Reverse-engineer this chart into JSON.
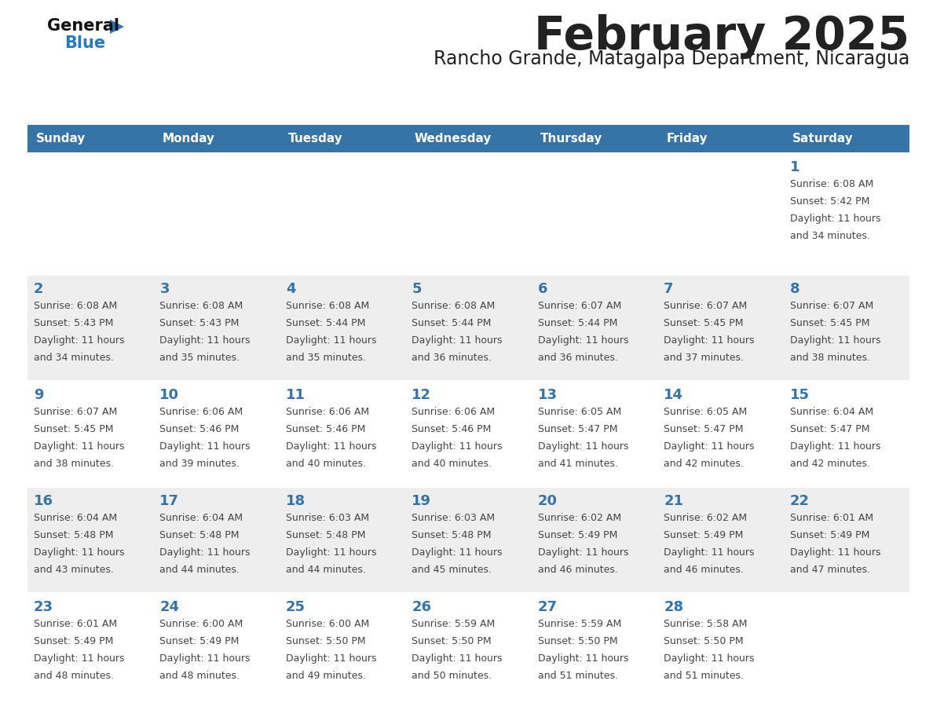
{
  "title": "February 2025",
  "subtitle": "Rancho Grande, Matagalpa Department, Nicaragua",
  "header_bg": "#3674A8",
  "header_text_color": "#FFFFFF",
  "day_names": [
    "Sunday",
    "Monday",
    "Tuesday",
    "Wednesday",
    "Thursday",
    "Friday",
    "Saturday"
  ],
  "row_bg": [
    "#FFFFFF",
    "#EEEEEE",
    "#FFFFFF",
    "#EEEEEE",
    "#FFFFFF"
  ],
  "separator_color": "#3674A8",
  "text_color": "#444444",
  "number_color": "#3674A8",
  "logo_general_color": "#111111",
  "logo_blue_color": "#2878BE",
  "calendar_data": [
    [
      null,
      null,
      null,
      null,
      null,
      null,
      {
        "day": 1,
        "sunrise": "6:08 AM",
        "sunset": "5:42 PM",
        "daylight": "11 hours and 34 minutes."
      }
    ],
    [
      {
        "day": 2,
        "sunrise": "6:08 AM",
        "sunset": "5:43 PM",
        "daylight": "11 hours and 34 minutes."
      },
      {
        "day": 3,
        "sunrise": "6:08 AM",
        "sunset": "5:43 PM",
        "daylight": "11 hours and 35 minutes."
      },
      {
        "day": 4,
        "sunrise": "6:08 AM",
        "sunset": "5:44 PM",
        "daylight": "11 hours and 35 minutes."
      },
      {
        "day": 5,
        "sunrise": "6:08 AM",
        "sunset": "5:44 PM",
        "daylight": "11 hours and 36 minutes."
      },
      {
        "day": 6,
        "sunrise": "6:07 AM",
        "sunset": "5:44 PM",
        "daylight": "11 hours and 36 minutes."
      },
      {
        "day": 7,
        "sunrise": "6:07 AM",
        "sunset": "5:45 PM",
        "daylight": "11 hours and 37 minutes."
      },
      {
        "day": 8,
        "sunrise": "6:07 AM",
        "sunset": "5:45 PM",
        "daylight": "11 hours and 38 minutes."
      }
    ],
    [
      {
        "day": 9,
        "sunrise": "6:07 AM",
        "sunset": "5:45 PM",
        "daylight": "11 hours and 38 minutes."
      },
      {
        "day": 10,
        "sunrise": "6:06 AM",
        "sunset": "5:46 PM",
        "daylight": "11 hours and 39 minutes."
      },
      {
        "day": 11,
        "sunrise": "6:06 AM",
        "sunset": "5:46 PM",
        "daylight": "11 hours and 40 minutes."
      },
      {
        "day": 12,
        "sunrise": "6:06 AM",
        "sunset": "5:46 PM",
        "daylight": "11 hours and 40 minutes."
      },
      {
        "day": 13,
        "sunrise": "6:05 AM",
        "sunset": "5:47 PM",
        "daylight": "11 hours and 41 minutes."
      },
      {
        "day": 14,
        "sunrise": "6:05 AM",
        "sunset": "5:47 PM",
        "daylight": "11 hours and 42 minutes."
      },
      {
        "day": 15,
        "sunrise": "6:04 AM",
        "sunset": "5:47 PM",
        "daylight": "11 hours and 42 minutes."
      }
    ],
    [
      {
        "day": 16,
        "sunrise": "6:04 AM",
        "sunset": "5:48 PM",
        "daylight": "11 hours and 43 minutes."
      },
      {
        "day": 17,
        "sunrise": "6:04 AM",
        "sunset": "5:48 PM",
        "daylight": "11 hours and 44 minutes."
      },
      {
        "day": 18,
        "sunrise": "6:03 AM",
        "sunset": "5:48 PM",
        "daylight": "11 hours and 44 minutes."
      },
      {
        "day": 19,
        "sunrise": "6:03 AM",
        "sunset": "5:48 PM",
        "daylight": "11 hours and 45 minutes."
      },
      {
        "day": 20,
        "sunrise": "6:02 AM",
        "sunset": "5:49 PM",
        "daylight": "11 hours and 46 minutes."
      },
      {
        "day": 21,
        "sunrise": "6:02 AM",
        "sunset": "5:49 PM",
        "daylight": "11 hours and 46 minutes."
      },
      {
        "day": 22,
        "sunrise": "6:01 AM",
        "sunset": "5:49 PM",
        "daylight": "11 hours and 47 minutes."
      }
    ],
    [
      {
        "day": 23,
        "sunrise": "6:01 AM",
        "sunset": "5:49 PM",
        "daylight": "11 hours and 48 minutes."
      },
      {
        "day": 24,
        "sunrise": "6:00 AM",
        "sunset": "5:49 PM",
        "daylight": "11 hours and 48 minutes."
      },
      {
        "day": 25,
        "sunrise": "6:00 AM",
        "sunset": "5:50 PM",
        "daylight": "11 hours and 49 minutes."
      },
      {
        "day": 26,
        "sunrise": "5:59 AM",
        "sunset": "5:50 PM",
        "daylight": "11 hours and 50 minutes."
      },
      {
        "day": 27,
        "sunrise": "5:59 AM",
        "sunset": "5:50 PM",
        "daylight": "11 hours and 51 minutes."
      },
      {
        "day": 28,
        "sunrise": "5:58 AM",
        "sunset": "5:50 PM",
        "daylight": "11 hours and 51 minutes."
      },
      null
    ]
  ],
  "fig_width": 11.88,
  "fig_height": 9.18,
  "dpi": 100
}
